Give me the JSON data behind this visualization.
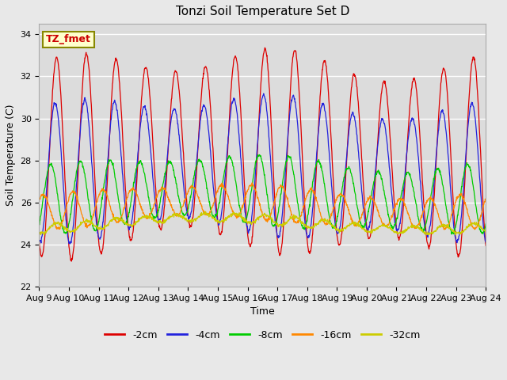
{
  "title": "Tonzi Soil Temperature Set D",
  "xlabel": "Time",
  "ylabel": "Soil Temperature (C)",
  "ylim": [
    22,
    34.5
  ],
  "yticks": [
    22,
    24,
    26,
    28,
    30,
    32,
    34
  ],
  "xtick_labels": [
    "Aug 9",
    "Aug 10",
    "Aug 11",
    "Aug 12",
    "Aug 13",
    "Aug 14",
    "Aug 15",
    "Aug 16",
    "Aug 17",
    "Aug 18",
    "Aug 19",
    "Aug 20",
    "Aug 21",
    "Aug 22",
    "Aug 23",
    "Aug 24"
  ],
  "annotation_text": "TZ_fmet",
  "annotation_color": "#cc0000",
  "annotation_bg": "#ffffcc",
  "annotation_border": "#888800",
  "fig_bg": "#e8e8e8",
  "plot_bg": "#dcdcdc",
  "grid_color": "#ffffff",
  "series_params": [
    {
      "label": "-2cm",
      "color": "#dd0000",
      "amp": 4.3,
      "mean": 28.3,
      "phase": 0.0,
      "amp_var": 0.6
    },
    {
      "label": "-4cm",
      "color": "#2222dd",
      "amp": 3.0,
      "mean": 27.6,
      "phase": 0.05,
      "amp_var": 0.4
    },
    {
      "label": "-8cm",
      "color": "#00cc00",
      "amp": 1.5,
      "mean": 26.4,
      "phase": 0.2,
      "amp_var": 0.2
    },
    {
      "label": "-16cm",
      "color": "#ff8800",
      "amp": 0.75,
      "mean": 25.8,
      "phase": 0.45,
      "amp_var": 0.1
    },
    {
      "label": "-32cm",
      "color": "#cccc00",
      "amp": 0.2,
      "mean": 25.0,
      "phase": 1.0,
      "amp_var": 0.03
    }
  ]
}
